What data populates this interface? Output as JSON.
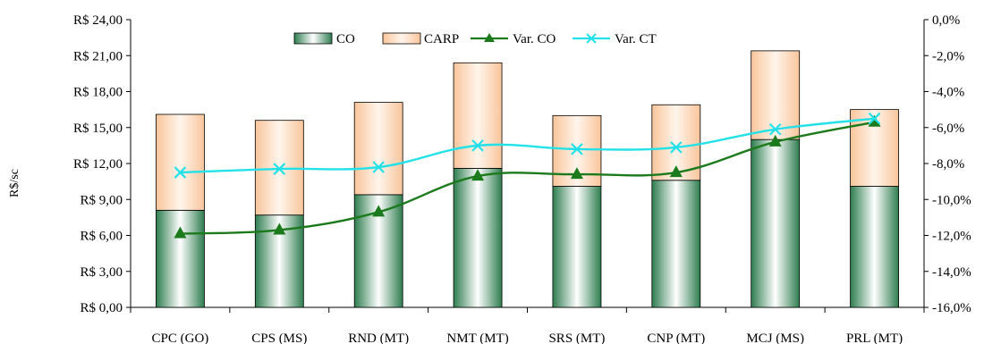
{
  "chart_data": {
    "type": "bar+line",
    "categories": [
      "CPC (GO)",
      "CPS (MS)",
      "RND (MT)",
      "NMT (MT)",
      "SRS (MT)",
      "CNP (MT)",
      "MCJ (MS)",
      "PRL (MT)"
    ],
    "series": [
      {
        "name": "CO",
        "type": "stacked-bar",
        "axis": "left",
        "values": [
          8.1,
          7.7,
          9.4,
          11.6,
          10.1,
          10.6,
          14.0,
          10.1
        ]
      },
      {
        "name": "CARP",
        "type": "stacked-bar",
        "axis": "left",
        "values": [
          8.0,
          7.9,
          7.7,
          8.8,
          5.9,
          6.3,
          7.4,
          6.4
        ]
      },
      {
        "name": "Var. CO",
        "type": "line",
        "axis": "right",
        "values": [
          -11.9,
          -11.7,
          -10.7,
          -8.7,
          -8.6,
          -8.5,
          -6.8,
          -5.7
        ]
      },
      {
        "name": "Var. CT",
        "type": "line",
        "axis": "right",
        "values": [
          -8.5,
          -8.3,
          -8.2,
          -7.0,
          -7.2,
          -7.1,
          -6.1,
          -5.5
        ]
      }
    ],
    "ylabel": "R$/sc",
    "ylim": [
      0,
      24
    ],
    "y2lim": [
      -16,
      0
    ],
    "y_ticks": [
      "R$ 0,00",
      "R$ 3,00",
      "R$ 6,00",
      "R$ 9,00",
      "R$ 12,00",
      "R$ 15,00",
      "R$ 18,00",
      "R$ 21,00",
      "R$ 24,00"
    ],
    "y2_ticks": [
      "-16,0%",
      "-14,0%",
      "-12,0%",
      "-10,0%",
      "-8,0%",
      "-6,0%",
      "-4,0%",
      "-2,0%",
      "0,0%"
    ],
    "legend_position": "top",
    "colors": {
      "co_dark": "#2e7d4f",
      "co_light": "#ffffff",
      "carp_edge": "#f9c59b",
      "carp_light": "#fff5ec",
      "var_co": "#1b7a1b",
      "var_ct": "#22e1e8"
    }
  }
}
